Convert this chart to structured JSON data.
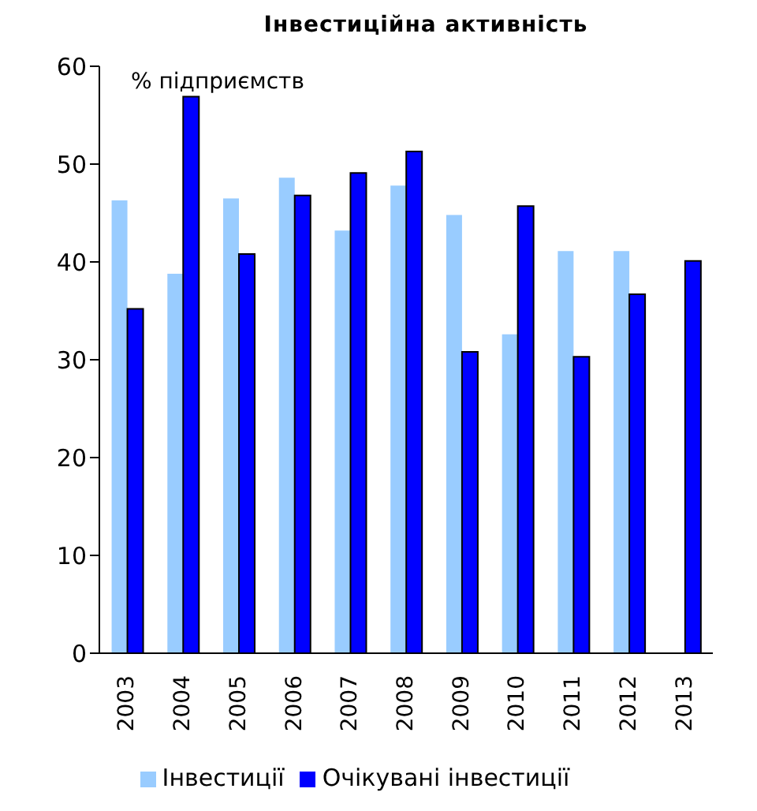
{
  "chart_data": {
    "type": "bar",
    "title": "Інвестиційна активність",
    "ylabel": "% підприємств",
    "categories": [
      "2003",
      "2004",
      "2005",
      "2006",
      "2007",
      "2008",
      "2009",
      "2010",
      "2011",
      "2012",
      "2013"
    ],
    "series": [
      {
        "name": "Інвестиції",
        "color": "#99ccff",
        "values": [
          46.3,
          38.8,
          46.5,
          48.6,
          43.2,
          47.8,
          44.8,
          32.6,
          41.1,
          41.1,
          null
        ]
      },
      {
        "name": "Очікувані інвестиції",
        "color": "#0000ff",
        "values": [
          35.2,
          56.9,
          40.8,
          46.8,
          49.1,
          51.3,
          30.8,
          45.7,
          30.3,
          36.7,
          40.1
        ]
      }
    ],
    "ylim": [
      0,
      60
    ],
    "yticks": [
      0,
      10,
      20,
      30,
      40,
      50,
      60
    ],
    "grid": false,
    "legend": "bottom"
  }
}
